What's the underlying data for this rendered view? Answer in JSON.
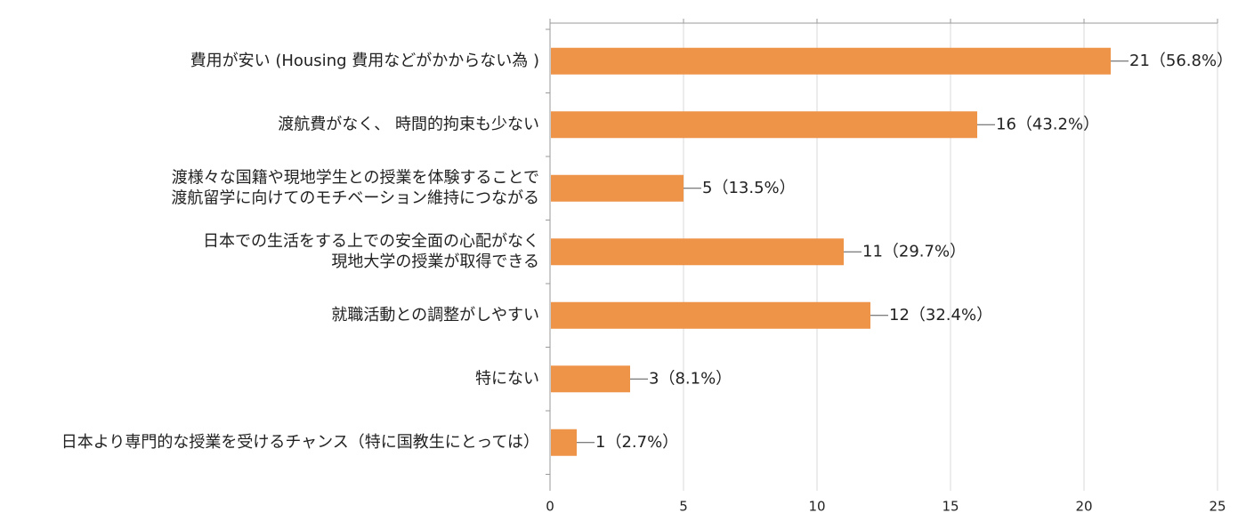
{
  "chart_data": {
    "type": "bar",
    "orientation": "horizontal",
    "categories": [
      [
        "費用が安い (Housing 費用などがかからない為 )"
      ],
      [
        "渡航費がなく、 時間的拘束も少ない"
      ],
      [
        "渡様々な国籍や現地学生との授業を体験することで",
        "渡航留学に向けてのモチベーション維持につながる"
      ],
      [
        "日本での生活をする上での安全面の心配がなく",
        "現地大学の授業が取得できる"
      ],
      [
        "就職活動との調整がしやすい"
      ],
      [
        "特にない"
      ],
      [
        "日本より専門的な授業を受けるチャンス（特に国教生にとっては）"
      ]
    ],
    "values": [
      21,
      16,
      5,
      11,
      12,
      3,
      1
    ],
    "data_labels": [
      "21（56.8%）",
      "16（43.2%）",
      "5（13.5%）",
      "11（29.7%）",
      "12（32.4%）",
      "3（8.1%）",
      "1（2.7%）"
    ],
    "x_ticks": [
      0,
      5,
      10,
      15,
      20,
      25
    ],
    "xlim": [
      0,
      25
    ],
    "grid": true,
    "bar_color": "#ED9448",
    "grid_color": "#d9d9d9",
    "axis_color": "#9a9a9a",
    "title": "",
    "xlabel": "",
    "ylabel": ""
  }
}
